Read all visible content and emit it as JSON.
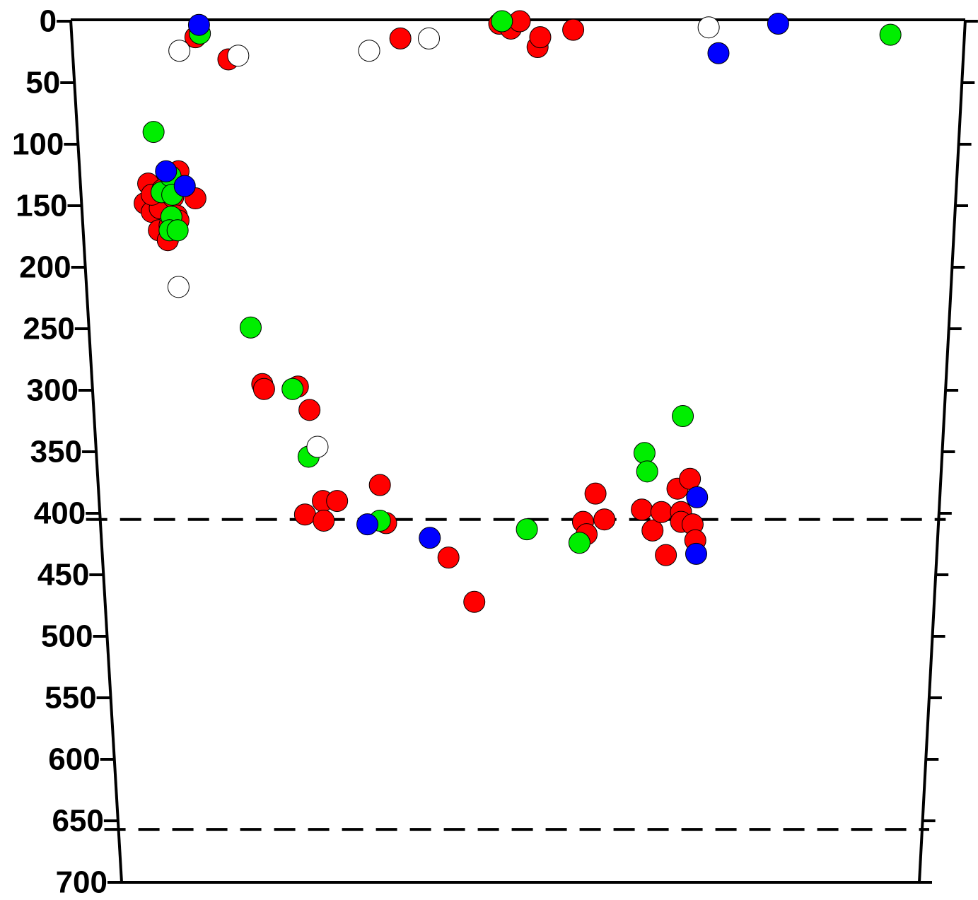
{
  "chart_data": {
    "type": "scatter",
    "ylim": [
      0,
      700
    ],
    "yticks": [
      0,
      50,
      100,
      150,
      200,
      250,
      300,
      350,
      400,
      450,
      500,
      550,
      600,
      650,
      700
    ],
    "xlim": [
      0,
      100
    ],
    "y_inverted": true,
    "hlines": [
      405,
      657
    ],
    "series": [
      {
        "color": "#ff0000",
        "x": [
          13.6,
          17.3,
          36.6,
          47.7,
          49.0,
          50.0,
          52.0,
          52.3,
          56.0,
          11.7,
          13.6,
          8.3,
          7.9,
          8.7,
          9.6,
          8.7,
          9.9,
          11.1,
          9.5,
          10.5,
          11.5,
          11.7,
          10.7,
          21.1,
          21.3,
          25.1,
          26.4,
          25.9,
          27.9,
          28.0,
          29.5,
          34.3,
          35.0,
          42.0,
          44.9,
          57.1,
          57.5,
          58.5,
          59.5,
          63.7,
          64.9,
          65.9,
          66.4,
          67.7,
          68.1,
          68.1,
          69.1,
          69.4,
          69.7
        ],
        "values": [
          13,
          31,
          14,
          2,
          6,
          0,
          21,
          13,
          7,
          122,
          144,
          132,
          148,
          155,
          152,
          141,
          137,
          143,
          170,
          178,
          158,
          162,
          166,
          295,
          299,
          297,
          316,
          401,
          390,
          406,
          390,
          377,
          408,
          436,
          472,
          407,
          417,
          384,
          405,
          397,
          414,
          399,
          434,
          380,
          399,
          407,
          372,
          409,
          422
        ]
      },
      {
        "color": "#00ee00",
        "x": [
          14.1,
          48.0,
          91.6,
          8.9,
          9.8,
          10.8,
          11.0,
          10.9,
          10.7,
          11.6,
          19.8,
          24.5,
          26.3,
          34.3,
          50.8,
          56.7,
          64.0,
          64.3,
          68.3
        ],
        "values": [
          10,
          0,
          11,
          90,
          139,
          126,
          141,
          159,
          170,
          170,
          249,
          299,
          354,
          406,
          413,
          424,
          351,
          366,
          321
        ]
      },
      {
        "color": "#0000ff",
        "x": [
          14.0,
          72.3,
          79.0,
          10.3,
          12.4,
          32.9,
          39.9,
          69.9,
          69.8
        ],
        "values": [
          3,
          26,
          2,
          122,
          134,
          409,
          420,
          387,
          433
        ]
      },
      {
        "color": "#ffffff",
        "x": [
          11.8,
          18.4,
          33.1,
          39.8,
          71.2,
          11.7,
          27.3
        ],
        "values": [
          24,
          28,
          24,
          14,
          5,
          216,
          346
        ]
      }
    ]
  }
}
